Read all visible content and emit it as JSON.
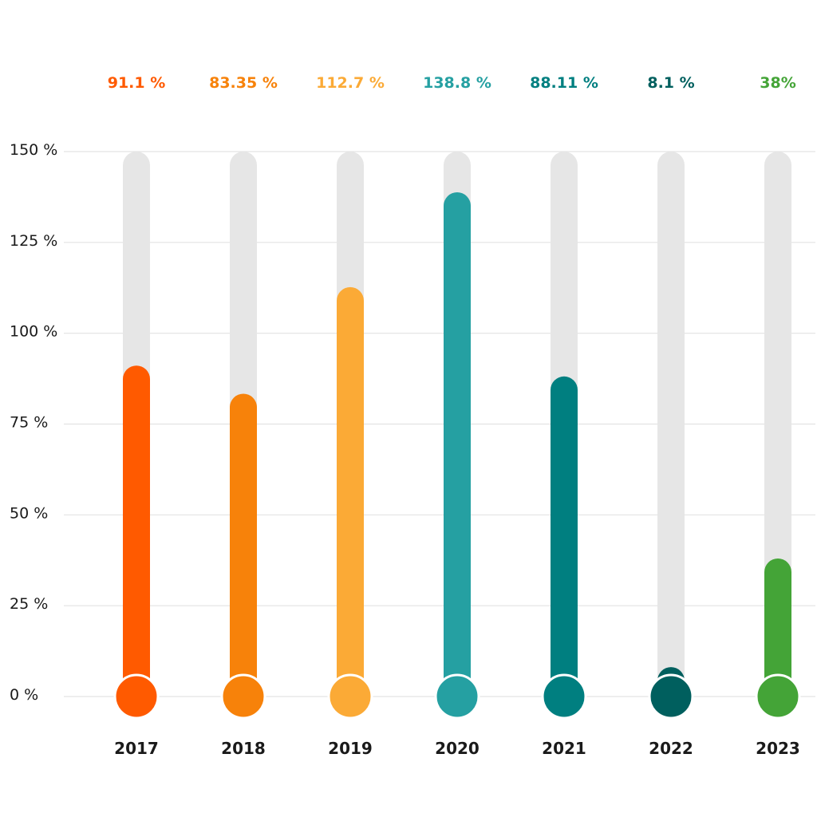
{
  "chart_data": {
    "type": "bar",
    "categories": [
      "2017",
      "2018",
      "2019",
      "2020",
      "2021",
      "2022",
      "2023"
    ],
    "values": [
      91.1,
      83.35,
      112.7,
      138.8,
      88.11,
      8.1,
      38
    ],
    "value_labels": [
      "91.1 %",
      "83.35 %",
      "112.7 %",
      "138.8 %",
      "88.11 %",
      "8.1 %",
      "38%"
    ],
    "colors": [
      "#ff5a00",
      "#f7820a",
      "#fbaa36",
      "#25a0a2",
      "#007f80",
      "#005f5e",
      "#44a437"
    ],
    "track_color": "#e6e6e6",
    "y_ticks": [
      0,
      25,
      50,
      75,
      100,
      125,
      150
    ],
    "y_tick_labels": [
      "0 %",
      "25 %",
      "50 %",
      "75 %",
      "100 %",
      "125 %",
      "150 %"
    ],
    "ylim": [
      0,
      150
    ],
    "grid": true,
    "title": "",
    "xlabel": "",
    "ylabel": ""
  }
}
